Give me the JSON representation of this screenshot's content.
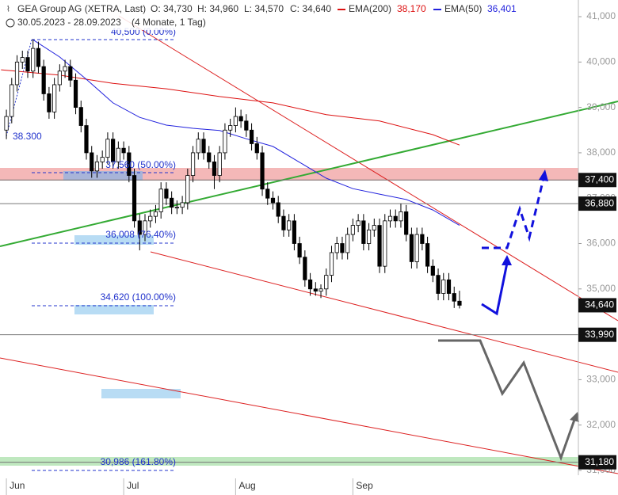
{
  "chart_data": {
    "type": "candlestick",
    "title": "GEA Group AG (XETRA, Last)",
    "ohlc_header": {
      "open": "O: 34,730",
      "high": "H: 34,960",
      "low": "L: 34,570",
      "close": "C: 34,640"
    },
    "subtitle": "30.05.2023 - 28.09.2023",
    "period": "(4 Monate, 1 Tag)",
    "ohlc": [
      [
        38500,
        38950,
        38300,
        38800
      ],
      [
        38800,
        39650,
        38650,
        39500
      ],
      [
        39500,
        40150,
        39350,
        40000
      ],
      [
        40000,
        40250,
        39850,
        40100
      ],
      [
        40100,
        40250,
        39650,
        39800
      ],
      [
        39800,
        40500,
        39650,
        40300
      ],
      [
        40300,
        40450,
        39750,
        39900
      ],
      [
        39900,
        40050,
        39150,
        39300
      ],
      [
        39300,
        39450,
        38750,
        38900
      ],
      [
        38900,
        39650,
        38750,
        39500
      ],
      [
        39500,
        39950,
        39350,
        39800
      ],
      [
        39800,
        40050,
        39650,
        39900
      ],
      [
        39900,
        40050,
        39450,
        39600
      ],
      [
        39600,
        39750,
        38850,
        39000
      ],
      [
        39000,
        39150,
        38450,
        38600
      ],
      [
        38600,
        38750,
        37850,
        38000
      ],
      [
        38000,
        38150,
        37450,
        37600
      ],
      [
        37600,
        37950,
        37450,
        37800
      ],
      [
        37800,
        38050,
        37650,
        37900
      ],
      [
        37900,
        38450,
        37750,
        38300
      ],
      [
        38300,
        38450,
        37650,
        37800
      ],
      [
        37800,
        38250,
        37650,
        38100
      ],
      [
        38100,
        38250,
        37850,
        38000
      ],
      [
        38000,
        38150,
        37350,
        37500
      ],
      [
        37500,
        37650,
        36350,
        36500
      ],
      [
        36500,
        36650,
        35850,
        36200
      ],
      [
        36200,
        36650,
        36050,
        36500
      ],
      [
        36500,
        36750,
        36350,
        36600
      ],
      [
        36600,
        36850,
        36450,
        36700
      ],
      [
        36700,
        37350,
        36550,
        37200
      ],
      [
        37200,
        37350,
        36850,
        37000
      ],
      [
        37000,
        37150,
        36650,
        36800
      ],
      [
        36800,
        36950,
        36650,
        36800
      ],
      [
        36800,
        37050,
        36650,
        36900
      ],
      [
        36900,
        37650,
        36750,
        37500
      ],
      [
        37500,
        38150,
        37350,
        38000
      ],
      [
        38000,
        38450,
        37850,
        38300
      ],
      [
        38300,
        38450,
        37850,
        38000
      ],
      [
        38000,
        38150,
        37650,
        37800
      ],
      [
        37800,
        37950,
        37200,
        37500
      ],
      [
        37500,
        38150,
        37350,
        38000
      ],
      [
        38000,
        38650,
        37850,
        38500
      ],
      [
        38500,
        38750,
        38350,
        38600
      ],
      [
        38600,
        39000,
        38450,
        38800
      ],
      [
        38800,
        38950,
        38550,
        38700
      ],
      [
        38700,
        38850,
        38350,
        38500
      ],
      [
        38500,
        38650,
        38050,
        38200
      ],
      [
        38200,
        38350,
        37850,
        38000
      ],
      [
        38000,
        38150,
        37050,
        37200
      ],
      [
        37200,
        37350,
        36850,
        37000
      ],
      [
        37000,
        37150,
        36750,
        36900
      ],
      [
        36900,
        37050,
        36450,
        36600
      ],
      [
        36600,
        36750,
        36150,
        36300
      ],
      [
        36300,
        36650,
        36150,
        36500
      ],
      [
        36500,
        36650,
        35850,
        36000
      ],
      [
        36000,
        36150,
        35550,
        35700
      ],
      [
        35700,
        35850,
        35050,
        35200
      ],
      [
        35200,
        35350,
        34850,
        35000
      ],
      [
        35000,
        35150,
        34850,
        34950
      ],
      [
        34950,
        35100,
        34800,
        35000
      ],
      [
        35000,
        35450,
        34850,
        35300
      ],
      [
        35300,
        35950,
        35150,
        35800
      ],
      [
        35800,
        36150,
        35650,
        36000
      ],
      [
        36000,
        36150,
        35650,
        35800
      ],
      [
        35800,
        36350,
        35650,
        36200
      ],
      [
        36200,
        36550,
        36050,
        36400
      ],
      [
        36400,
        36650,
        36250,
        36500
      ],
      [
        36500,
        36650,
        35850,
        36000
      ],
      [
        36000,
        36450,
        35850,
        36300
      ],
      [
        36300,
        36550,
        36150,
        36400
      ],
      [
        36400,
        36550,
        35350,
        35500
      ],
      [
        35500,
        36650,
        35350,
        36500
      ],
      [
        36500,
        36750,
        36350,
        36600
      ],
      [
        36600,
        36750,
        36350,
        36500
      ],
      [
        36500,
        36880,
        36350,
        36700
      ],
      [
        36700,
        36850,
        36050,
        36200
      ],
      [
        36200,
        36350,
        35450,
        35600
      ],
      [
        35600,
        36350,
        35450,
        36200
      ],
      [
        36200,
        36350,
        35850,
        36000
      ],
      [
        36000,
        36150,
        35350,
        35500
      ],
      [
        35500,
        35650,
        35150,
        35300
      ],
      [
        35300,
        35450,
        34750,
        34900
      ],
      [
        34900,
        35350,
        34750,
        35200
      ],
      [
        35200,
        35350,
        34750,
        34900
      ],
      [
        34900,
        35050,
        34580,
        34730
      ],
      [
        34730,
        34960,
        34570,
        34640
      ]
    ],
    "series": [
      {
        "name": "EMA(200)",
        "value_label": "38,170",
        "color": "#dd1111",
        "x": [
          -1,
          10,
          20,
          30,
          40,
          50,
          60,
          70,
          80,
          85
        ],
        "values": [
          39830,
          39710,
          39530,
          39410,
          39240,
          39100,
          38840,
          38700,
          38400,
          38170
        ]
      },
      {
        "name": "EMA(50)",
        "value_label": "36,401",
        "color": "#2222dd",
        "x": [
          5,
          10,
          15,
          20,
          25,
          30,
          35,
          40,
          45,
          50,
          55,
          60,
          65,
          70,
          75,
          80,
          85
        ],
        "values": [
          40490,
          40110,
          39620,
          39100,
          38780,
          38610,
          38540,
          38490,
          38310,
          38140,
          37790,
          37440,
          37210,
          37090,
          36970,
          36740,
          36400
        ]
      }
    ],
    "price_levels": [
      {
        "value": 37400,
        "label": "37,400"
      },
      {
        "value": 36880,
        "label": "36,880"
      },
      {
        "value": 34640,
        "label": "34,640"
      },
      {
        "value": 33990,
        "label": "33,990"
      },
      {
        "value": 31180,
        "label": "31,180"
      }
    ],
    "fib_labels": [
      "40,500 (0.00%)",
      "37,560 (50.00%)",
      "36,008 (76.40%)",
      "34,620 (100.00%)",
      "30,986 (161.80%)"
    ],
    "low_label": "38.300",
    "xlim": [
      -1.2,
      107.3
    ],
    "ylim": [
      30895,
      41367
    ],
    "xticks": [
      {
        "value": 0,
        "label": "Jun"
      },
      {
        "value": 22,
        "label": "Jul"
      },
      {
        "value": 43,
        "label": "Aug"
      },
      {
        "value": 65,
        "label": "Sep"
      }
    ],
    "yticks": [
      {
        "value": 31000,
        "label": "31,000"
      },
      {
        "value": 32000,
        "label": "32,000"
      },
      {
        "value": 33000,
        "label": "33,000"
      },
      {
        "value": 34000,
        "label": "34,000"
      },
      {
        "value": 35000,
        "label": "35,000"
      },
      {
        "value": 36000,
        "label": "36,000"
      },
      {
        "value": 37000,
        "label": "37,000"
      },
      {
        "value": 38000,
        "label": "38,000"
      },
      {
        "value": 39000,
        "label": "39,000"
      },
      {
        "value": 40000,
        "label": "40,000"
      },
      {
        "value": 41000,
        "label": "41,000"
      }
    ]
  }
}
